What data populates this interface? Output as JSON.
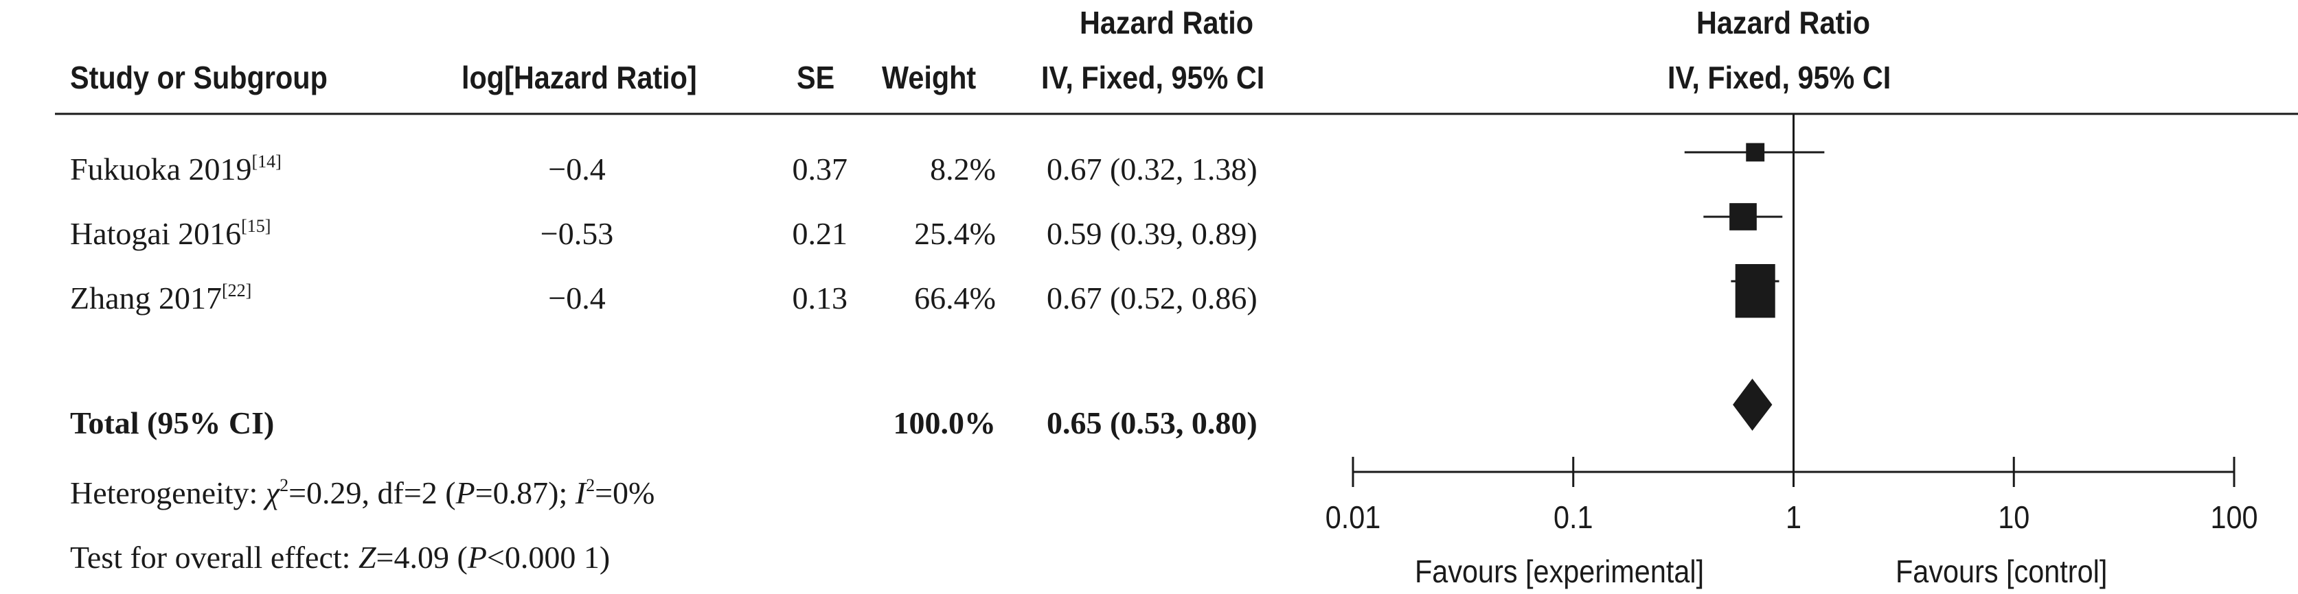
{
  "headers": {
    "study": "Study or Subgroup",
    "log_hr": "log[Hazard Ratio]",
    "se": "SE",
    "weight": "Weight",
    "hr_top": "Hazard Ratio",
    "hr_sub": "IV, Fixed, 95% CI",
    "plot_top": "Hazard Ratio",
    "plot_sub": "IV, Fixed, 95% CI"
  },
  "studies": [
    {
      "name": "Fukuoka 2019",
      "ref": "[14]",
      "log_hr": "−0.4",
      "se": "0.37",
      "weight": "8.2%",
      "hr_ci": "0.67 (0.32, 1.38)"
    },
    {
      "name": "Hatogai 2016",
      "ref": "[15]",
      "log_hr": "−0.53",
      "se": "0.21",
      "weight": "25.4%",
      "hr_ci": "0.59 (0.39, 0.89)"
    },
    {
      "name": "Zhang 2017",
      "ref": "[22]",
      "log_hr": "−0.4",
      "se": "0.13",
      "weight": "66.4%",
      "hr_ci": "0.67 (0.52, 0.86)"
    }
  ],
  "total": {
    "label": "Total (95% CI)",
    "weight": "100.0%",
    "hr_ci": "0.65 (0.53, 0.80)"
  },
  "heterogeneity": {
    "prefix": "Heterogeneity: ",
    "chi_sym": "χ",
    "chi_sup": "2",
    "chi_val": "=0.29, df=2 (",
    "p_sym": "P",
    "p_val": "=0.87); ",
    "i_sym": "I",
    "i_sup": "2",
    "i_val": "=0%"
  },
  "overall_effect": {
    "prefix": "Test for overall effect: ",
    "z_sym": "Z",
    "z_val": "=4.09 (",
    "p_sym": "P",
    "p_val": "<0.000 1)"
  },
  "axis": {
    "ticks": [
      "0.01",
      "0.1",
      "1",
      "10",
      "100"
    ],
    "left_label": "Favours [experimental]",
    "right_label": "Favours [control]"
  },
  "chart_data": {
    "type": "forest",
    "scale": "log",
    "xlim": [
      0.01,
      100
    ],
    "reference_line": 1,
    "tick_values": [
      0.01,
      0.1,
      1,
      10,
      100
    ],
    "studies": [
      {
        "name": "Fukuoka 2019",
        "hr": 0.67,
        "lower": 0.32,
        "upper": 1.38,
        "weight": 8.2
      },
      {
        "name": "Hatogai 2016",
        "hr": 0.59,
        "lower": 0.39,
        "upper": 0.89,
        "weight": 25.4
      },
      {
        "name": "Zhang 2017",
        "hr": 0.67,
        "lower": 0.52,
        "upper": 0.86,
        "weight": 66.4
      }
    ],
    "total": {
      "hr": 0.65,
      "lower": 0.53,
      "upper": 0.8
    },
    "colors": {
      "ink": "#1a1a1a"
    }
  }
}
